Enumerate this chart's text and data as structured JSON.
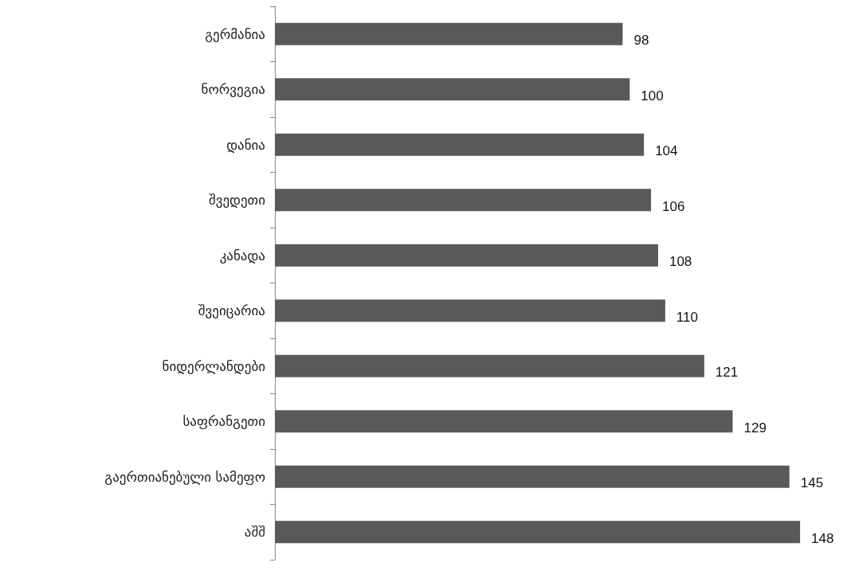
{
  "chart_data": {
    "type": "bar",
    "orientation": "horizontal",
    "categories": [
      "გერმანია",
      "ნორვეგია",
      "დანია",
      "შვედეთი",
      "კანადა",
      "შვეიცარია",
      "ნიდერლანდები",
      "საფრანგეთი",
      "გაერთიანებული სამეფო",
      "აშშ"
    ],
    "values": [
      98,
      100,
      104,
      106,
      108,
      110,
      121,
      129,
      145,
      148
    ],
    "color": "#595959",
    "data_labels": true
  }
}
